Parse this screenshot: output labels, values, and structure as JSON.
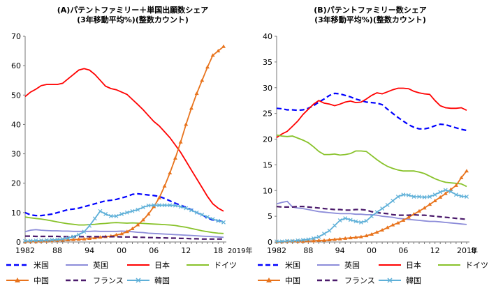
{
  "chart_data": [
    {
      "type": "line",
      "title_lines": [
        "(A)パテントファミリー＋単国出願数シェア",
        "(3年移動平均%)(整数カウント)"
      ],
      "ylim": [
        0,
        70
      ],
      "yticks": [
        0,
        10,
        20,
        30,
        40,
        50,
        60,
        70
      ],
      "xlim": [
        1982,
        2019
      ],
      "xtick_labels": [
        {
          "x": 1982,
          "label": "1982"
        },
        {
          "x": 1988,
          "label": "88"
        },
        {
          "x": 1994,
          "label": "94"
        },
        {
          "x": 2000,
          "label": "00"
        },
        {
          "x": 2006,
          "label": "06"
        },
        {
          "x": 2012,
          "label": "12"
        },
        {
          "x": 2018,
          "label": "18"
        }
      ],
      "x_end_label": "2019年",
      "x": [
        1982,
        1983,
        1984,
        1985,
        1986,
        1987,
        1988,
        1989,
        1990,
        1991,
        1992,
        1993,
        1994,
        1995,
        1996,
        1997,
        1998,
        1999,
        2000,
        2001,
        2002,
        2003,
        2004,
        2005,
        2006,
        2007,
        2008,
        2009,
        2010,
        2011,
        2012,
        2013,
        2014,
        2015,
        2016,
        2017,
        2018,
        2019
      ],
      "series": [
        {
          "name": "米国",
          "color": "#0000ff",
          "dash": "7,4",
          "marker": "none",
          "values": [
            10,
            9.2,
            9,
            9,
            9.2,
            9.5,
            10,
            10.5,
            11,
            11.2,
            11.5,
            12,
            12.5,
            13,
            13.5,
            14,
            14.2,
            14.5,
            15,
            15.5,
            16.2,
            16.4,
            16.2,
            16,
            15.8,
            15.5,
            14.8,
            14,
            13.2,
            12.5,
            11.8,
            11,
            10,
            9.2,
            8.2,
            7.5,
            7.2,
            7
          ]
        },
        {
          "name": "英国",
          "color": "#8c8cd9",
          "dash": "",
          "marker": "none",
          "values": [
            3.5,
            4,
            4.2,
            4,
            3.9,
            3.8,
            3.8,
            3.7,
            3.7,
            3.6,
            3.6,
            3.6,
            3.6,
            3.7,
            3.6,
            3.6,
            3.6,
            3.6,
            3.7,
            3.6,
            3.5,
            3.3,
            3.2,
            3,
            2.9,
            2.8,
            2.7,
            2.6,
            2.5,
            2.4,
            2.3,
            2.2,
            2.1,
            2,
            1.9,
            1.8,
            1.7,
            1.6
          ]
        },
        {
          "name": "日本",
          "color": "#ff0000",
          "dash": "",
          "marker": "none",
          "values": [
            49.5,
            51,
            52,
            53.2,
            53.6,
            53.6,
            53.6,
            54,
            55.5,
            57,
            58.5,
            59,
            58.5,
            57,
            55,
            53,
            52.2,
            51.8,
            51,
            50.2,
            48.5,
            46.8,
            45,
            43,
            41,
            39.5,
            37.5,
            35.5,
            33,
            30.5,
            27.5,
            24.5,
            21.5,
            18.5,
            15.5,
            13,
            11.5,
            10.5
          ]
        },
        {
          "name": "ドイツ",
          "color": "#88c22a",
          "dash": "",
          "marker": "none",
          "values": [
            8.5,
            8.2,
            8,
            7.8,
            7.5,
            7.2,
            6.8,
            6.5,
            6.2,
            6,
            5.8,
            5.8,
            5.9,
            6,
            6.2,
            6.3,
            6.5,
            6.6,
            6.5,
            6.4,
            6.5,
            6.4,
            6.3,
            6.2,
            6.1,
            6,
            5.9,
            5.8,
            5.6,
            5.3,
            5,
            4.6,
            4.2,
            3.8,
            3.5,
            3.2,
            3,
            2.9
          ]
        },
        {
          "name": "中国",
          "color": "#e8731c",
          "dash": "",
          "marker": "triangle",
          "values": [
            0,
            0.1,
            0.1,
            0.2,
            0.3,
            0.4,
            0.5,
            0.6,
            0.7,
            0.8,
            0.9,
            1,
            1.2,
            1.4,
            1.6,
            1.8,
            2,
            2.4,
            2.8,
            3.5,
            4.5,
            5.8,
            7.5,
            9.5,
            12,
            15,
            19,
            23.5,
            28.5,
            34,
            40,
            45.5,
            50.5,
            55,
            59.5,
            63.5,
            65,
            66.5
          ]
        },
        {
          "name": "フランス",
          "color": "#4b1a6b",
          "dash": "7,4",
          "marker": "none",
          "values": [
            2,
            2,
            1.9,
            1.9,
            1.9,
            1.9,
            1.9,
            1.8,
            1.8,
            1.8,
            1.8,
            1.8,
            1.8,
            1.8,
            1.8,
            1.8,
            1.8,
            1.8,
            1.7,
            1.7,
            1.7,
            1.6,
            1.6,
            1.5,
            1.5,
            1.4,
            1.4,
            1.3,
            1.3,
            1.2,
            1.2,
            1.1,
            1.1,
            1,
            1,
            1,
            1,
            1
          ]
        },
        {
          "name": "韓国",
          "color": "#5fb0d8",
          "dash": "",
          "marker": "x",
          "values": [
            0.3,
            0.4,
            0.5,
            0.5,
            0.6,
            0.7,
            0.8,
            1,
            1.3,
            1.8,
            2.5,
            3.5,
            5.5,
            8,
            10.5,
            9.5,
            8.8,
            8.8,
            9.5,
            10,
            10.5,
            11,
            11.8,
            12.4,
            12.5,
            12.5,
            12.5,
            12.5,
            12.4,
            12,
            11.5,
            10.8,
            10,
            9.3,
            8.5,
            7.8,
            7.2,
            6.7
          ]
        }
      ]
    },
    {
      "type": "line",
      "title_lines": [
        "(B)パテントファミリー数シェア",
        "(3年移動平均%)(整数カウント)"
      ],
      "ylim": [
        0,
        40
      ],
      "yticks": [
        0,
        5,
        10,
        15,
        20,
        25,
        30,
        35,
        40
      ],
      "xlim": [
        1982,
        2018
      ],
      "xtick_labels": [
        {
          "x": 1982,
          "label": "1982"
        },
        {
          "x": 1988,
          "label": "88"
        },
        {
          "x": 1994,
          "label": "94"
        },
        {
          "x": 2000,
          "label": "00"
        },
        {
          "x": 2006,
          "label": "06"
        },
        {
          "x": 2012,
          "label": "12"
        },
        {
          "x": 2018,
          "label": "2018"
        }
      ],
      "x_end_label": "年",
      "x": [
        1982,
        1983,
        1984,
        1985,
        1986,
        1987,
        1988,
        1989,
        1990,
        1991,
        1992,
        1993,
        1994,
        1995,
        1996,
        1997,
        1998,
        1999,
        2000,
        2001,
        2002,
        2003,
        2004,
        2005,
        2006,
        2007,
        2008,
        2009,
        2010,
        2011,
        2012,
        2013,
        2014,
        2015,
        2016,
        2017,
        2018
      ],
      "series": [
        {
          "name": "米国",
          "color": "#0000ff",
          "dash": "7,4",
          "marker": "none",
          "values": [
            26,
            25.9,
            25.7,
            25.7,
            25.6,
            25.7,
            26,
            26.5,
            27.2,
            27.8,
            28.5,
            28.9,
            28.8,
            28.5,
            28.2,
            27.8,
            27.5,
            27.2,
            27.1,
            27,
            26.7,
            25.8,
            25,
            24.2,
            23.5,
            22.8,
            22.3,
            22,
            22,
            22.2,
            22.6,
            22.9,
            22.8,
            22.5,
            22.2,
            21.9,
            21.7
          ]
        },
        {
          "name": "英国",
          "color": "#8c8cd9",
          "dash": "",
          "marker": "none",
          "values": [
            7.4,
            7.7,
            7.9,
            6.8,
            6.6,
            6.5,
            6.3,
            6.1,
            5.9,
            5.8,
            5.7,
            5.6,
            5.5,
            5.5,
            5.5,
            5.4,
            5.4,
            5.3,
            5.3,
            5.2,
            5,
            4.9,
            4.8,
            4.6,
            4.5,
            4.4,
            4.3,
            4.2,
            4.1,
            4,
            4,
            3.9,
            3.8,
            3.7,
            3.6,
            3.5,
            3.4
          ]
        },
        {
          "name": "日本",
          "color": "#ff0000",
          "dash": "",
          "marker": "none",
          "values": [
            20.3,
            21,
            21.5,
            22.5,
            23.5,
            24.8,
            25.8,
            26.8,
            27.5,
            27,
            26.8,
            26.5,
            26.8,
            27.2,
            27.4,
            27.1,
            27.2,
            27.8,
            28.5,
            29,
            28.8,
            29.2,
            29.6,
            29.9,
            29.9,
            29.8,
            29.3,
            29,
            28.8,
            28.7,
            27.5,
            26.5,
            26.1,
            26,
            26,
            26.1,
            25.6
          ]
        },
        {
          "name": "ドイツ",
          "color": "#88c22a",
          "dash": "",
          "marker": "none",
          "values": [
            20.8,
            20.6,
            20.5,
            20.6,
            20.2,
            19.8,
            19.3,
            18.5,
            17.6,
            17,
            17,
            17.1,
            16.9,
            17,
            17.2,
            17.7,
            17.7,
            17.6,
            16.8,
            16,
            15.3,
            14.7,
            14.3,
            14,
            13.8,
            13.8,
            13.8,
            13.6,
            13.3,
            12.8,
            12.3,
            11.9,
            11.6,
            11.5,
            11.4,
            11.3,
            10.8
          ]
        },
        {
          "name": "中国",
          "color": "#e8731c",
          "dash": "",
          "marker": "triangle",
          "values": [
            0,
            0,
            0.1,
            0.1,
            0.1,
            0.1,
            0.2,
            0.2,
            0.3,
            0.3,
            0.4,
            0.5,
            0.6,
            0.7,
            0.8,
            0.9,
            1,
            1.2,
            1.5,
            1.9,
            2.3,
            2.8,
            3.3,
            3.7,
            4.2,
            4.8,
            5.4,
            6,
            6.6,
            7.3,
            8,
            8.7,
            9.4,
            10.2,
            11,
            12.5,
            13.8
          ]
        },
        {
          "name": "フランス",
          "color": "#4b1a6b",
          "dash": "7,4",
          "marker": "none",
          "values": [
            6.9,
            6.8,
            6.8,
            6.8,
            6.9,
            6.9,
            6.8,
            6.7,
            6.6,
            6.5,
            6.4,
            6.3,
            6.3,
            6.2,
            6.2,
            6.3,
            6.3,
            6.2,
            5.9,
            5.7,
            5.6,
            5.5,
            5.3,
            5.2,
            5.2,
            5.2,
            5.3,
            5.2,
            5.2,
            5.1,
            5,
            4.9,
            4.8,
            4.7,
            4.6,
            4.5,
            4.4
          ]
        },
        {
          "name": "韓国",
          "color": "#5fb0d8",
          "dash": "",
          "marker": "x",
          "values": [
            0.1,
            0.1,
            0.2,
            0.2,
            0.3,
            0.4,
            0.5,
            0.7,
            1,
            1.6,
            2.2,
            3.2,
            4.2,
            4.6,
            4.3,
            4,
            3.8,
            4.1,
            5,
            5.8,
            6.5,
            7.2,
            8,
            8.8,
            9.2,
            9.1,
            8.8,
            8.8,
            8.7,
            8.8,
            9.2,
            9.7,
            10.1,
            9.8,
            9.2,
            8.9,
            8.8
          ]
        }
      ]
    }
  ]
}
